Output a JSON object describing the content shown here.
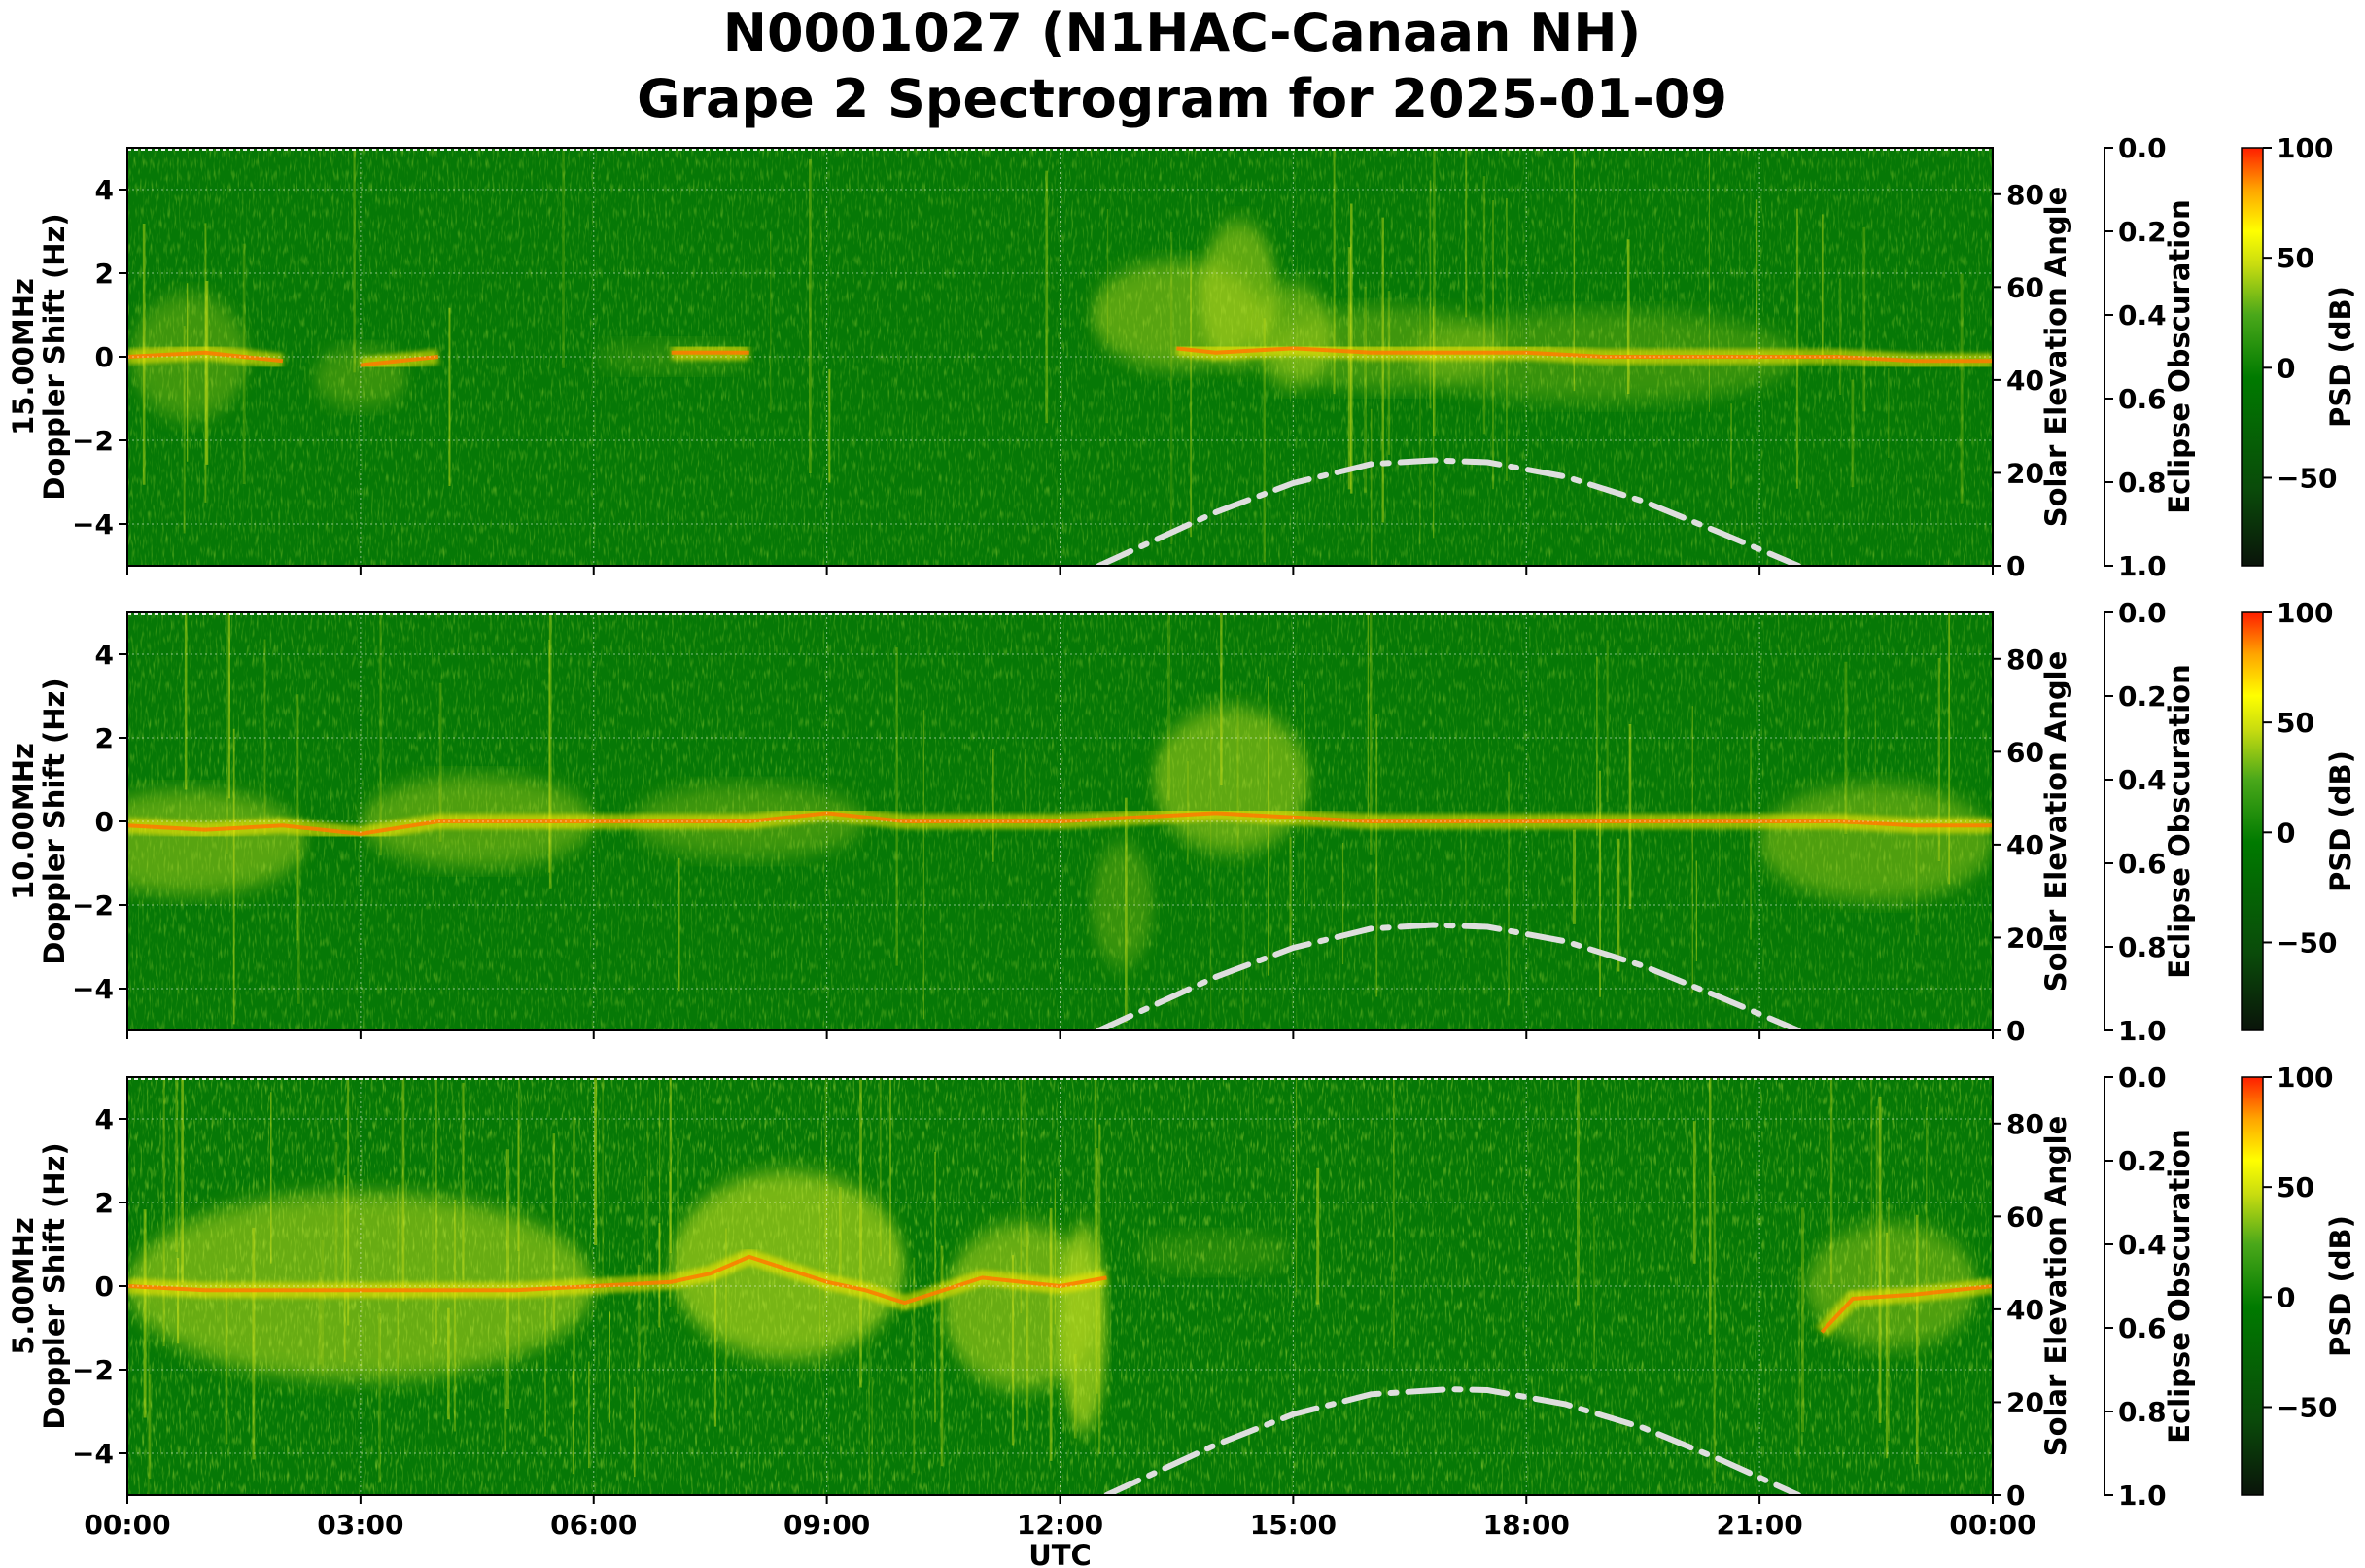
{
  "figure": {
    "title_line1": "N0001027 (N1HAC-Canaan NH)",
    "title_line2": "Grape 2 Spectrogram for 2025-01-09",
    "colors": {
      "psd_colormap": [
        "#0a1a0a",
        "#0b4d0b",
        "#007a00",
        "#3aa01a",
        "#bcd612",
        "#ffff00",
        "#ffb000",
        "#ff2a00"
      ],
      "solar_curve": "#dedede",
      "background_green": "#067806"
    }
  },
  "chart_data": [
    {
      "type": "heatmap",
      "name": "15.00MHz",
      "ylabel_line1": "15.00MHz",
      "ylabel_line2": "Doppler Shift (Hz)",
      "xlabel": "",
      "x_ticks": [
        "00:00",
        "03:00",
        "06:00",
        "09:00",
        "12:00",
        "15:00",
        "18:00",
        "21:00",
        "00:00"
      ],
      "xlim_hours": [
        0,
        24
      ],
      "ylim": [
        -5,
        5
      ],
      "y_ticks": [
        4,
        2,
        0,
        -2,
        -4
      ],
      "y_ticklabels": [
        "4",
        "2",
        "0",
        "−2",
        "−4"
      ],
      "right_axis": {
        "label": "Solar Elevation Angle",
        "ticks": [
          0,
          20,
          40,
          60,
          80
        ],
        "lim": [
          0,
          90
        ]
      },
      "eclipse_axis": {
        "label": "Eclipse Obscuration",
        "ticks": [
          "0.0",
          "0.2",
          "0.4",
          "0.6",
          "0.8",
          "1.0"
        ],
        "lim": [
          0,
          1
        ]
      },
      "colorbar": {
        "label": "PSD (dB)",
        "ticks": [
          100,
          50,
          0,
          -50
        ],
        "ticklabels": [
          "100",
          "50",
          "0",
          "−50"
        ],
        "lim": [
          -90,
          100
        ]
      },
      "solar_elevation": {
        "x": [
          12.5,
          14,
          15,
          16,
          16.8,
          17.5,
          18.5,
          19.5,
          20.5,
          21.5
        ],
        "y": [
          0,
          11.5,
          17.8,
          21.9,
          22.7,
          22.3,
          19.2,
          13.9,
          7.1,
          0
        ]
      },
      "doppler_trace": {
        "x": [
          0,
          1,
          2,
          2.2,
          3,
          4,
          5,
          6,
          7,
          8,
          8.5,
          13.5,
          14,
          15,
          16,
          17,
          18,
          19,
          20,
          21,
          22,
          23,
          24
        ],
        "y": [
          0,
          0.1,
          -0.1,
          null,
          -0.2,
          0,
          null,
          null,
          0.1,
          0.1,
          null,
          0.2,
          0.1,
          0.2,
          0.1,
          0.1,
          0.1,
          0.0,
          0.0,
          0.0,
          0.0,
          -0.1,
          -0.1
        ]
      }
    },
    {
      "type": "heatmap",
      "name": "10.00MHz",
      "ylabel_line1": "10.00MHz",
      "ylabel_line2": "Doppler Shift (Hz)",
      "xlabel": "",
      "x_ticks": [
        "00:00",
        "03:00",
        "06:00",
        "09:00",
        "12:00",
        "15:00",
        "18:00",
        "21:00",
        "00:00"
      ],
      "xlim_hours": [
        0,
        24
      ],
      "ylim": [
        -5,
        5
      ],
      "y_ticks": [
        4,
        2,
        0,
        -2,
        -4
      ],
      "y_ticklabels": [
        "4",
        "2",
        "0",
        "−2",
        "−4"
      ],
      "right_axis": {
        "label": "Solar Elevation Angle",
        "ticks": [
          0,
          20,
          40,
          60,
          80
        ],
        "lim": [
          0,
          90
        ]
      },
      "eclipse_axis": {
        "label": "Eclipse Obscuration",
        "ticks": [
          "0.0",
          "0.2",
          "0.4",
          "0.6",
          "0.8",
          "1.0"
        ],
        "lim": [
          0,
          1
        ]
      },
      "colorbar": {
        "label": "PSD (dB)",
        "ticks": [
          100,
          50,
          0,
          -50
        ],
        "ticklabels": [
          "100",
          "50",
          "0",
          "−50"
        ],
        "lim": [
          -90,
          100
        ]
      },
      "solar_elevation": {
        "x": [
          12.5,
          14,
          15,
          16,
          16.8,
          17.5,
          18.5,
          19.5,
          20.5,
          21.5
        ],
        "y": [
          0,
          11.5,
          17.8,
          21.9,
          22.7,
          22.3,
          19.2,
          13.9,
          7.1,
          0
        ]
      },
      "doppler_trace": {
        "x": [
          0,
          1,
          2,
          3,
          4,
          5,
          6,
          7,
          8,
          9,
          10,
          11,
          12,
          13,
          14,
          15,
          16,
          17,
          18,
          19,
          20,
          21,
          22,
          23,
          24
        ],
        "y": [
          -0.1,
          -0.2,
          -0.1,
          -0.3,
          0,
          0,
          0,
          0,
          0,
          0.2,
          0,
          0,
          0,
          0.1,
          0.2,
          0.1,
          0,
          0,
          0,
          0,
          0,
          0,
          0,
          -0.1,
          -0.1
        ]
      }
    },
    {
      "type": "heatmap",
      "name": "5.00MHz",
      "ylabel_line1": "5.00MHz",
      "ylabel_line2": "Doppler Shift (Hz)",
      "xlabel": "UTC",
      "x_ticks": [
        "00:00",
        "03:00",
        "06:00",
        "09:00",
        "12:00",
        "15:00",
        "18:00",
        "21:00",
        "00:00"
      ],
      "xlim_hours": [
        0,
        24
      ],
      "ylim": [
        -5,
        5
      ],
      "y_ticks": [
        4,
        2,
        0,
        -2,
        -4
      ],
      "y_ticklabels": [
        "4",
        "2",
        "0",
        "−2",
        "−4"
      ],
      "right_axis": {
        "label": "Solar Elevation Angle",
        "ticks": [
          0,
          20,
          40,
          60,
          80
        ],
        "lim": [
          0,
          90
        ]
      },
      "eclipse_axis": {
        "label": "Eclipse Obscuration",
        "ticks": [
          "0.0",
          "0.2",
          "0.4",
          "0.6",
          "0.8",
          "1.0"
        ],
        "lim": [
          0,
          1
        ]
      },
      "colorbar": {
        "label": "PSD (dB)",
        "ticks": [
          100,
          50,
          0,
          -50
        ],
        "ticklabels": [
          "100",
          "50",
          "0",
          "−50"
        ],
        "lim": [
          -90,
          100
        ]
      },
      "solar_elevation": {
        "x": [
          12.6,
          14,
          15,
          16,
          17,
          17.5,
          18.5,
          19.5,
          20.5,
          21.5
        ],
        "y": [
          0,
          10.8,
          17.4,
          21.7,
          22.8,
          22.6,
          19.6,
          14.5,
          7.6,
          0
        ]
      },
      "doppler_trace": {
        "x": [
          0,
          1,
          2,
          3,
          4,
          5,
          6,
          7,
          7.5,
          8,
          8.5,
          9,
          9.5,
          10,
          11,
          12,
          12.6,
          null,
          21.8,
          22.2,
          23,
          24
        ],
        "y": [
          0,
          -0.1,
          -0.1,
          -0.1,
          -0.1,
          -0.1,
          0,
          0.1,
          0.3,
          0.7,
          0.4,
          0.1,
          -0.1,
          -0.4,
          0.2,
          0,
          0.2,
          null,
          -1.1,
          -0.3,
          -0.2,
          0
        ]
      }
    }
  ]
}
